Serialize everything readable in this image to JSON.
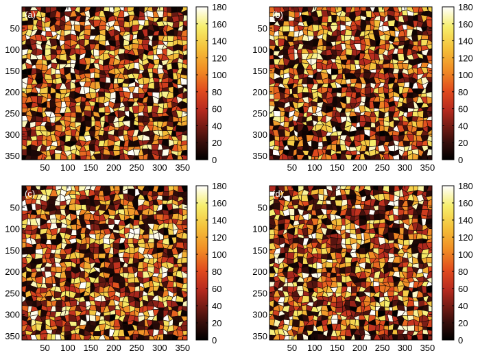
{
  "chart_data": [
    {
      "type": "heatmap",
      "panel_label": "(a)",
      "description_kind": "grain orientation map",
      "xlim": [
        0,
        360
      ],
      "ylim": [
        0,
        360
      ],
      "y_reversed": true,
      "x_ticks": [
        50,
        100,
        150,
        200,
        250,
        300,
        350
      ],
      "y_ticks": [
        50,
        100,
        150,
        200,
        250,
        300,
        350
      ],
      "colorbar": {
        "min": 0,
        "max": 180,
        "ticks": [
          0,
          20,
          40,
          60,
          80,
          100,
          120,
          140,
          160,
          180
        ]
      },
      "colormap": "hot",
      "seed": 11
    },
    {
      "type": "heatmap",
      "panel_label": "(b)",
      "xlim": [
        0,
        360
      ],
      "ylim": [
        0,
        360
      ],
      "y_reversed": true,
      "x_ticks": [
        50,
        100,
        150,
        200,
        250,
        300,
        350
      ],
      "y_ticks": [
        50,
        100,
        150,
        200,
        250,
        300,
        350
      ],
      "colorbar": {
        "min": 0,
        "max": 180,
        "ticks": [
          0,
          20,
          40,
          60,
          80,
          100,
          120,
          140,
          160,
          180
        ]
      },
      "colormap": "hot",
      "seed": 23
    },
    {
      "type": "heatmap",
      "panel_label": "(c)",
      "xlim": [
        0,
        360
      ],
      "ylim": [
        0,
        360
      ],
      "y_reversed": true,
      "x_ticks": [
        50,
        100,
        150,
        200,
        250,
        300,
        350
      ],
      "y_ticks": [
        50,
        100,
        150,
        200,
        250,
        300,
        350
      ],
      "colorbar": {
        "min": 0,
        "max": 180,
        "ticks": [
          0,
          20,
          40,
          60,
          80,
          100,
          120,
          140,
          160,
          180
        ]
      },
      "colormap": "hot",
      "seed": 37
    },
    {
      "type": "heatmap",
      "panel_label": "(d)",
      "xlim": [
        0,
        360
      ],
      "ylim": [
        0,
        360
      ],
      "y_reversed": true,
      "x_ticks": [
        50,
        100,
        150,
        200,
        250,
        300,
        350
      ],
      "y_ticks": [
        50,
        100,
        150,
        200,
        250,
        300,
        350
      ],
      "colorbar": {
        "min": 0,
        "max": 180,
        "ticks": [
          0,
          20,
          40,
          60,
          80,
          100,
          120,
          140,
          160,
          180
        ]
      },
      "colormap": "hot",
      "seed": 53
    }
  ]
}
